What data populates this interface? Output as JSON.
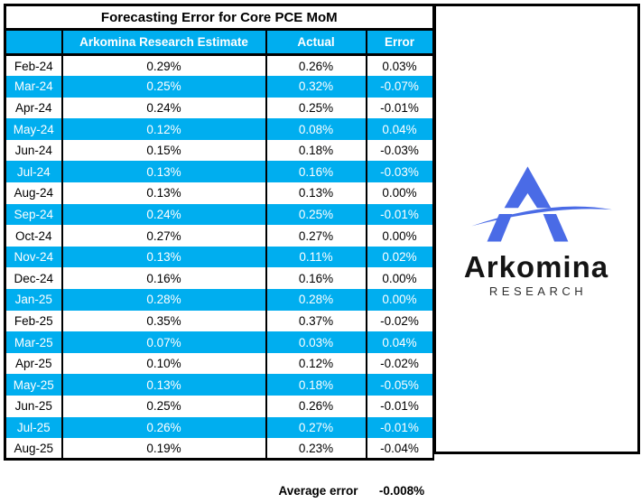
{
  "chart_data": {
    "type": "table",
    "title": "Forecasting Error for Core PCE MoM",
    "columns": [
      "",
      "Arkomina Research Estimate",
      "Actual",
      "Error"
    ],
    "rows": [
      [
        "Feb-24",
        "0.29%",
        "0.26%",
        "0.03%"
      ],
      [
        "Mar-24",
        "0.25%",
        "0.32%",
        "-0.07%"
      ],
      [
        "Apr-24",
        "0.24%",
        "0.25%",
        "-0.01%"
      ],
      [
        "May-24",
        "0.12%",
        "0.08%",
        "0.04%"
      ],
      [
        "Jun-24",
        "0.15%",
        "0.18%",
        "-0.03%"
      ],
      [
        "Jul-24",
        "0.13%",
        "0.16%",
        "-0.03%"
      ],
      [
        "Aug-24",
        "0.13%",
        "0.13%",
        "0.00%"
      ],
      [
        "Sep-24",
        "0.24%",
        "0.25%",
        "-0.01%"
      ],
      [
        "Oct-24",
        "0.27%",
        "0.27%",
        "0.00%"
      ],
      [
        "Nov-24",
        "0.13%",
        "0.11%",
        "0.02%"
      ],
      [
        "Dec-24",
        "0.16%",
        "0.16%",
        "0.00%"
      ],
      [
        "Jan-25",
        "0.28%",
        "0.28%",
        "0.00%"
      ],
      [
        "Feb-25",
        "0.35%",
        "0.37%",
        "-0.02%"
      ],
      [
        "Mar-25",
        "0.07%",
        "0.03%",
        "0.04%"
      ],
      [
        "Apr-25",
        "0.10%",
        "0.12%",
        "-0.02%"
      ],
      [
        "May-25",
        "0.13%",
        "0.18%",
        "-0.05%"
      ],
      [
        "Jun-25",
        "0.25%",
        "0.26%",
        "-0.01%"
      ],
      [
        "Jul-25",
        "0.26%",
        "0.27%",
        "-0.01%"
      ],
      [
        "Aug-25",
        "0.19%",
        "0.23%",
        "-0.04%"
      ]
    ],
    "footer_label": "Average error",
    "footer_value": "-0.008%",
    "legend_position": "none",
    "grid": "column-lines-only",
    "highlight_pattern": "every second data row filled blue"
  },
  "logo": {
    "name": "Arkomina",
    "subtitle": "RESEARCH"
  },
  "colors": {
    "highlight_blue": "#00AEEF",
    "logo_blue": "#4A6BE6",
    "border_black": "#000000",
    "background": "#FFFFFF"
  }
}
